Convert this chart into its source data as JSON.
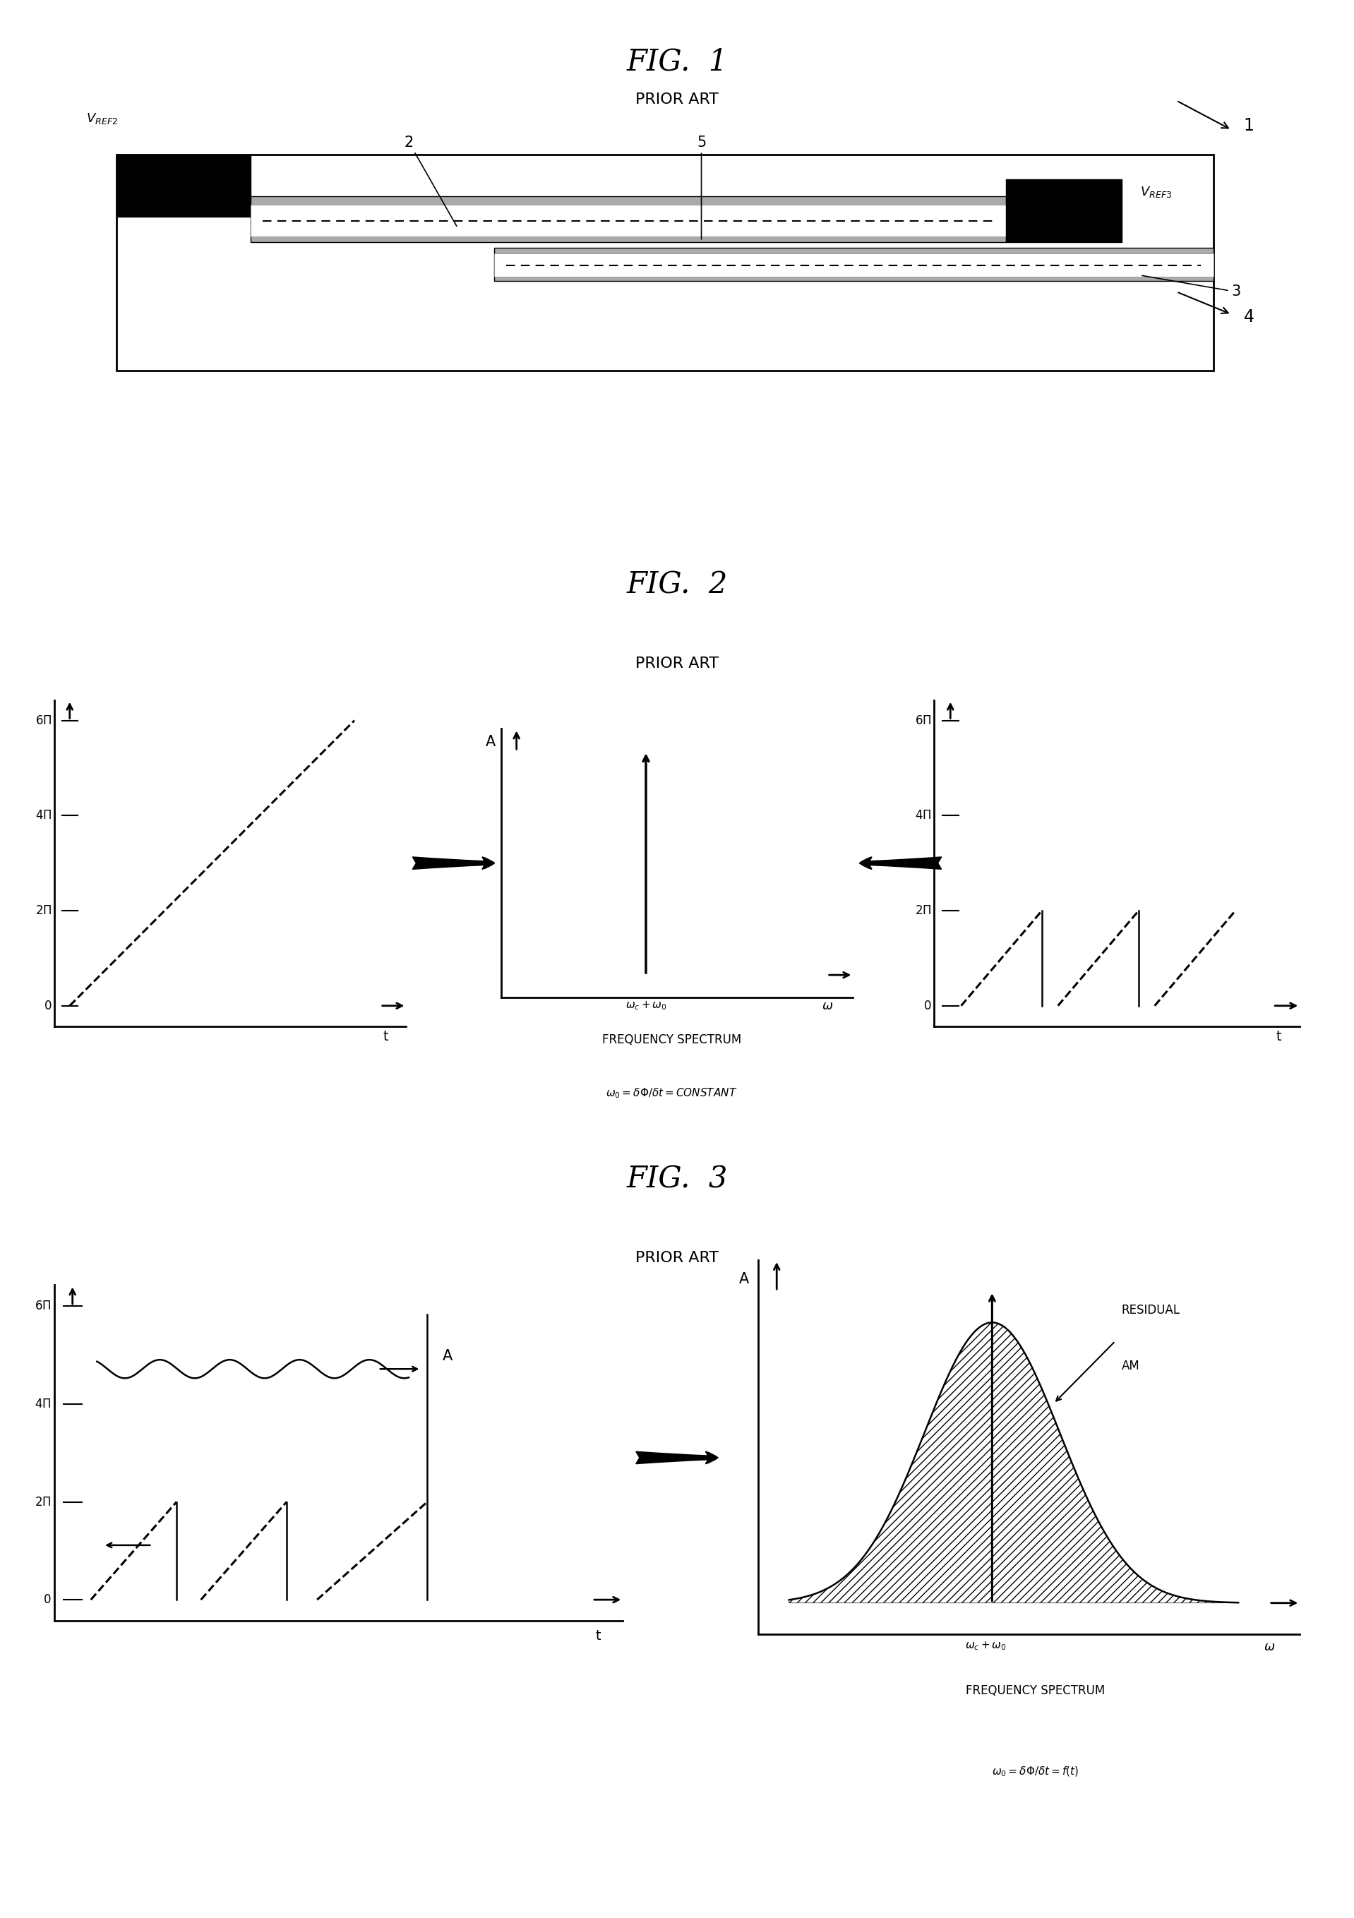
{
  "fig1_title": "FIG.  1",
  "fig1_subtitle": "PRIOR ART",
  "fig2_title": "FIG.  2",
  "fig2_subtitle": "PRIOR ART",
  "fig3_title": "FIG.  3",
  "fig3_subtitle": "PRIOR ART",
  "fig2_freq_label1": "FREQUENCY SPECTRUM",
  "fig2_freq_label2": "$\\omega_0 = \\delta\\Phi/\\delta t = CONSTANT$",
  "fig3_freq_label1": "FREQUENCY SPECTRUM",
  "fig3_freq_label2": "$\\omega_0 = \\delta\\Phi/\\delta t = f(t)$",
  "bg_color": "#ffffff",
  "line_color": "#000000"
}
